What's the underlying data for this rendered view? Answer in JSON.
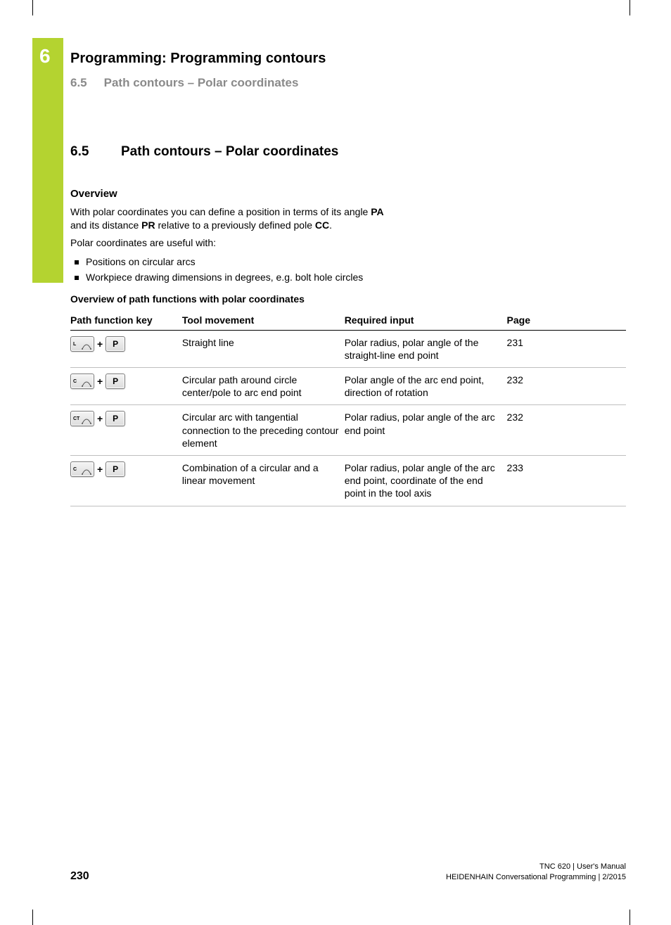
{
  "colors": {
    "accent": "#b4d330",
    "heading_gray": "#8a8a8a",
    "rule": "#bfbfbf",
    "text": "#000000",
    "background": "#ffffff"
  },
  "chapter": {
    "number": "6",
    "title": "Programming: Programming contours"
  },
  "breadcrumb": {
    "number": "6.5",
    "title": "Path contours – Polar coordinates"
  },
  "section": {
    "number": "6.5",
    "title": "Path contours – Polar coordinates"
  },
  "overview": {
    "heading": "Overview",
    "para1_a": "With polar coordinates you can define a position in terms of its angle ",
    "pa": "PA",
    "para1_b": " and its distance ",
    "pr": "PR",
    "para1_c": " relative to a previously defined pole ",
    "cc": "CC",
    "para1_d": ".",
    "para2": "Polar coordinates are useful with:",
    "bullets": [
      "Positions on circular arcs",
      "Workpiece drawing dimensions in degrees, e.g. bolt hole circles"
    ]
  },
  "table": {
    "title": "Overview of path functions with polar coordinates",
    "headers": {
      "key": "Path function key",
      "move": "Tool movement",
      "req": "Required input",
      "page": "Page"
    },
    "rows": [
      {
        "icon_label": "L",
        "p_label": "P",
        "plus": "+",
        "move": "Straight line",
        "req": "Polar radius, polar angle of the straight-line end point",
        "page": "231"
      },
      {
        "icon_label": "C",
        "p_label": "P",
        "plus": "+",
        "move": "Circular path around circle center/pole to arc end point",
        "req": "Polar angle of the arc end point, direction of rotation",
        "page": "232"
      },
      {
        "icon_label": "CT",
        "p_label": "P",
        "plus": "+",
        "move": "Circular arc with tangential connection to the preceding contour element",
        "req": "Polar radius, polar angle of the arc end point",
        "page": "232"
      },
      {
        "icon_label": "C",
        "p_label": "P",
        "plus": "+",
        "move": "Combination of a circular and a linear movement",
        "req": "Polar radius, polar angle of the arc end point, coordinate of the end point in the tool axis",
        "page": "233"
      }
    ]
  },
  "footer": {
    "page": "230",
    "line1": "TNC 620 | User's Manual",
    "line2": "HEIDENHAIN Conversational Programming | 2/2015"
  }
}
